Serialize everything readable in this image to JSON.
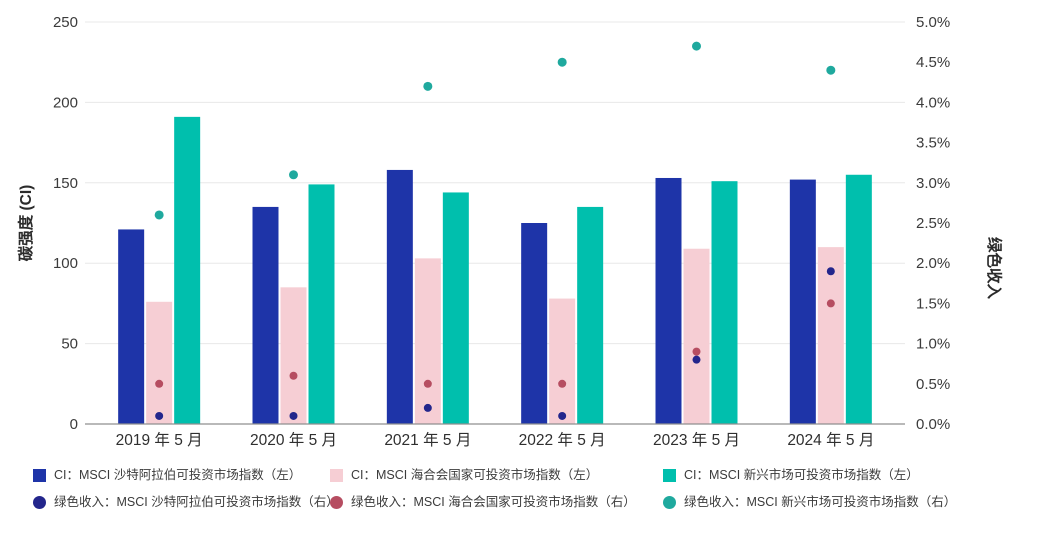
{
  "chart_data": {
    "type": "bar",
    "subtype": "grouped-bars-with-scatter-overlay-dual-y-axis",
    "title": "",
    "categories": [
      "2019 年 5 月",
      "2020 年 5 月",
      "2021 年 5 月",
      "2022 年 5 月",
      "2023 年 5 月",
      "2024 年 5 月"
    ],
    "left_axis": {
      "label": "碳强度 (CI)",
      "min": 0,
      "max": 250,
      "ticks": [
        0,
        50,
        100,
        150,
        200,
        250
      ]
    },
    "right_axis": {
      "label": "绿色收入",
      "min": 0,
      "max": 5,
      "ticks": [
        "0.0%",
        "0.5%",
        "1.0%",
        "1.5%",
        "2.0%",
        "2.5%",
        "3.0%",
        "3.5%",
        "4.0%",
        "4.5%",
        "5.0%"
      ]
    },
    "bar_series": [
      {
        "name": "CI：MSCI 沙特阿拉伯可投资市场指数（左）",
        "color": "#1e34a8",
        "axis": "left",
        "values": [
          121,
          135,
          158,
          125,
          153,
          152
        ]
      },
      {
        "name": "CI：MSCI 海合会国家可投资市场指数（左）",
        "color": "#f6ced4",
        "axis": "left",
        "values": [
          76,
          85,
          103,
          78,
          109,
          110
        ]
      },
      {
        "name": "CI：MSCI 新兴市场可投资市场指数（左）",
        "color": "#00bfad",
        "axis": "left",
        "values": [
          191,
          149,
          144,
          135,
          151,
          155
        ]
      }
    ],
    "dot_series": [
      {
        "name": "绿色收入：MSCI 沙特阿拉伯可投资市场指数（右）",
        "color": "#23268c",
        "axis": "right",
        "values": [
          0.1,
          0.1,
          0.2,
          0.1,
          0.8,
          1.9
        ]
      },
      {
        "name": "绿色收入：MSCI 海合会国家可投资市场指数（右）",
        "color": "#b64d61",
        "axis": "right",
        "values": [
          0.5,
          0.6,
          0.5,
          0.5,
          0.9,
          1.5
        ]
      },
      {
        "name": "绿色收入：MSCI 新兴市场可投资市场指数（右）",
        "color": "#1fa99e",
        "axis": "right",
        "values": [
          2.6,
          3.1,
          4.2,
          4.5,
          4.7,
          4.4
        ]
      }
    ],
    "legend_position": "bottom",
    "grid": "horizontal-gridlines-at-left-ticks"
  }
}
